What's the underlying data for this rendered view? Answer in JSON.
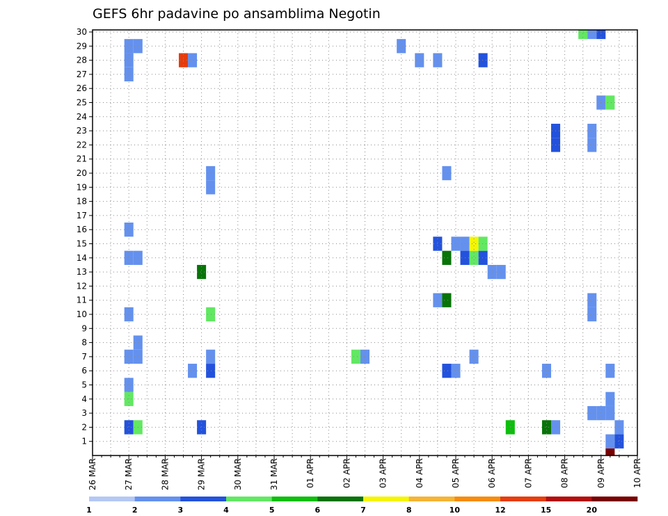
{
  "chart_data": {
    "type": "heatmap",
    "title": "GEFS 6hr padavine po ansamblima Negotin",
    "xlabel": "",
    "ylabel": "",
    "x_ticks": [
      "26 MAR",
      "27 MAR",
      "28 MAR",
      "29 MAR",
      "30 MAR",
      "31 MAR",
      "01 APR",
      "02 APR",
      "03 APR",
      "04 APR",
      "05 APR",
      "06 APR",
      "07 APR",
      "08 APR",
      "09 APR",
      "10 APR"
    ],
    "y_ticks": [
      1,
      2,
      3,
      4,
      5,
      6,
      7,
      8,
      9,
      10,
      11,
      12,
      13,
      14,
      15,
      16,
      17,
      18,
      19,
      20,
      21,
      22,
      23,
      24,
      25,
      26,
      27,
      28,
      29,
      30
    ],
    "steps_per_day": 4,
    "grid": true,
    "colorbar": {
      "labels": [
        "1",
        "2",
        "3",
        "4",
        "5",
        "6",
        "7",
        "8",
        "10",
        "12",
        "15",
        "20"
      ],
      "colors": [
        "#b4c8f5",
        "#6491ee",
        "#2352dc",
        "#62e862",
        "#0cbf0c",
        "#087408",
        "#f5f500",
        "#f5b435",
        "#f58c0c",
        "#e63c0c",
        "#b40c0c",
        "#780000"
      ]
    },
    "cells": [
      {
        "t": 4,
        "m": 2,
        "v": 2
      },
      {
        "t": 5,
        "m": 2,
        "v": 3
      },
      {
        "t": 12,
        "m": 2,
        "v": 2
      },
      {
        "t": 4,
        "m": 4,
        "v": 3
      },
      {
        "t": 4,
        "m": 5,
        "v": 1
      },
      {
        "t": 4,
        "m": 7,
        "v": 1
      },
      {
        "t": 5,
        "m": 7,
        "v": 1
      },
      {
        "t": 5,
        "m": 8,
        "v": 1
      },
      {
        "t": 4,
        "m": 10,
        "v": 1
      },
      {
        "t": 4,
        "m": 14,
        "v": 1
      },
      {
        "t": 5,
        "m": 14,
        "v": 1
      },
      {
        "t": 4,
        "m": 16,
        "v": 1
      },
      {
        "t": 4,
        "m": 27,
        "v": 1
      },
      {
        "t": 4,
        "m": 28,
        "v": 1
      },
      {
        "t": 4,
        "m": 29,
        "v": 1
      },
      {
        "t": 5,
        "m": 29,
        "v": 1
      },
      {
        "t": 10,
        "m": 28,
        "v": 9
      },
      {
        "t": 11,
        "m": 28,
        "v": 1
      },
      {
        "t": 11,
        "m": 6,
        "v": 1
      },
      {
        "t": 13,
        "m": 6,
        "v": 2
      },
      {
        "t": 13,
        "m": 7,
        "v": 1
      },
      {
        "t": 13,
        "m": 10,
        "v": 3
      },
      {
        "t": 12,
        "m": 13,
        "v": 5
      },
      {
        "t": 13,
        "m": 19,
        "v": 1
      },
      {
        "t": 13,
        "m": 20,
        "v": 1
      },
      {
        "t": 29,
        "m": 7,
        "v": 3
      },
      {
        "t": 30,
        "m": 7,
        "v": 1
      },
      {
        "t": 34,
        "m": 29,
        "v": 1
      },
      {
        "t": 36,
        "m": 28,
        "v": 1
      },
      {
        "t": 38,
        "m": 28,
        "v": 1
      },
      {
        "t": 38,
        "m": 11,
        "v": 1
      },
      {
        "t": 39,
        "m": 11,
        "v": 5
      },
      {
        "t": 38,
        "m": 15,
        "v": 2
      },
      {
        "t": 39,
        "m": 6,
        "v": 2
      },
      {
        "t": 40,
        "m": 6,
        "v": 1
      },
      {
        "t": 39,
        "m": 14,
        "v": 5
      },
      {
        "t": 39,
        "m": 20,
        "v": 1
      },
      {
        "t": 40,
        "m": 15,
        "v": 1
      },
      {
        "t": 41,
        "m": 15,
        "v": 1
      },
      {
        "t": 41,
        "m": 14,
        "v": 2
      },
      {
        "t": 42,
        "m": 14,
        "v": 3
      },
      {
        "t": 42,
        "m": 15,
        "v": 6
      },
      {
        "t": 43,
        "m": 14,
        "v": 2
      },
      {
        "t": 43,
        "m": 15,
        "v": 3
      },
      {
        "t": 42,
        "m": 7,
        "v": 1
      },
      {
        "t": 43,
        "m": 28,
        "v": 2
      },
      {
        "t": 44,
        "m": 13,
        "v": 1
      },
      {
        "t": 45,
        "m": 13,
        "v": 1
      },
      {
        "t": 46,
        "m": 2,
        "v": 4
      },
      {
        "t": 50,
        "m": 2,
        "v": 5
      },
      {
        "t": 51,
        "m": 2,
        "v": 1
      },
      {
        "t": 50,
        "m": 6,
        "v": 1
      },
      {
        "t": 51,
        "m": 23,
        "v": 2
      },
      {
        "t": 51,
        "m": 22,
        "v": 2
      },
      {
        "t": 55,
        "m": 3,
        "v": 1
      },
      {
        "t": 56,
        "m": 3,
        "v": 1
      },
      {
        "t": 57,
        "m": 3,
        "v": 1
      },
      {
        "t": 57,
        "m": 4,
        "v": 1
      },
      {
        "t": 55,
        "m": 10,
        "v": 1
      },
      {
        "t": 55,
        "m": 11,
        "v": 1
      },
      {
        "t": 55,
        "m": 22,
        "v": 1
      },
      {
        "t": 55,
        "m": 23,
        "v": 1
      },
      {
        "t": 56,
        "m": 25,
        "v": 1
      },
      {
        "t": 57,
        "m": 25,
        "v": 3
      },
      {
        "t": 57,
        "m": 6,
        "v": 1
      },
      {
        "t": 54,
        "m": 30,
        "v": 3
      },
      {
        "t": 55,
        "m": 30,
        "v": 1
      },
      {
        "t": 56,
        "m": 30,
        "v": 2
      },
      {
        "t": 57,
        "m": 1,
        "v": 1
      },
      {
        "t": 58,
        "m": 1,
        "v": 2
      },
      {
        "t": 58,
        "m": 2,
        "v": 1
      },
      {
        "t": 57,
        "m": 0,
        "v": 11
      }
    ]
  }
}
